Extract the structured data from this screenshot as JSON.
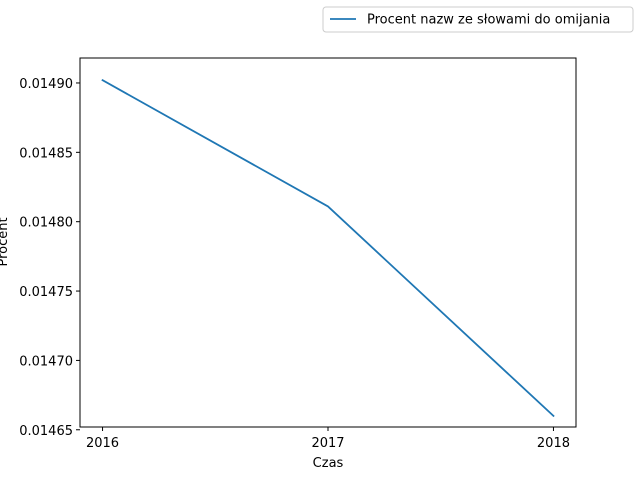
{
  "chart_data": {
    "type": "line",
    "title": "",
    "xlabel": "Czas",
    "ylabel": "Procent",
    "x": [
      2016,
      2017,
      2018
    ],
    "x_tick_labels": [
      "2016",
      "2017",
      "2018"
    ],
    "y_ticks": [
      0.01465,
      0.0147,
      0.01475,
      0.0148,
      0.01485,
      0.0149
    ],
    "y_tick_labels": [
      "0.01465",
      "0.01470",
      "0.01475",
      "0.01480",
      "0.01485",
      "0.01490"
    ],
    "xlim": [
      2015.9,
      2018.1
    ],
    "ylim": [
      0.014652,
      0.014918
    ],
    "grid": false,
    "legend_position": "upper-right, above plot",
    "series": [
      {
        "name": "Procent nazw ze słowami do omijania",
        "color": "#1f77b4",
        "values": [
          0.014902,
          0.014811,
          0.01466
        ]
      }
    ]
  }
}
